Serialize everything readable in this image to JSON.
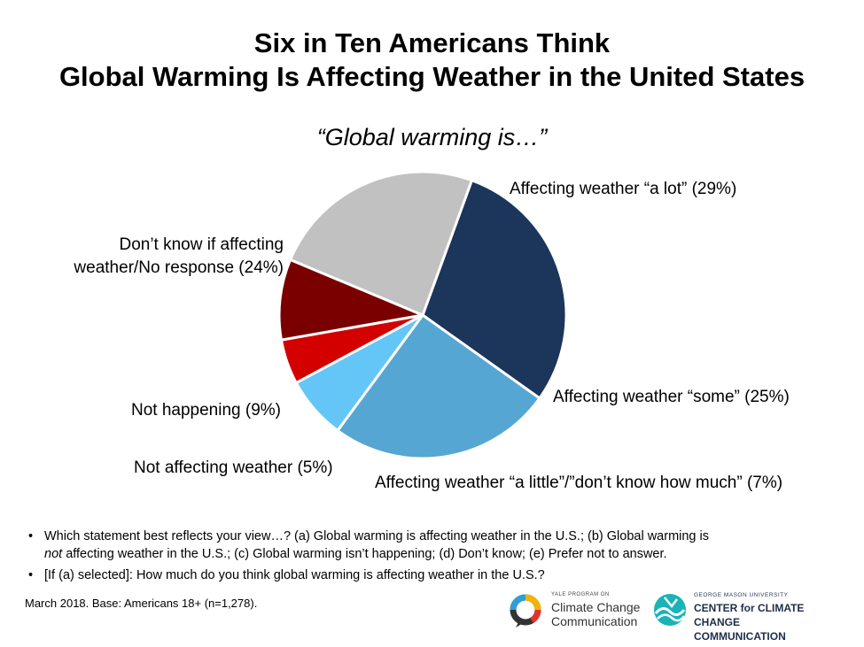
{
  "header": {
    "title_line1": "Six in Ten Americans Think",
    "title_line2": "Global Warming Is Affecting Weather in the United States",
    "subtitle": "“Global warming is…”"
  },
  "chart_data": {
    "type": "pie",
    "start_angle_deg": -70,
    "slices": [
      {
        "label": "Affecting weather “a lot” (29%)",
        "value": 29,
        "color": "#1b355b"
      },
      {
        "label": "Affecting weather “some” (25%)",
        "value": 25,
        "color": "#56a6d3"
      },
      {
        "label": "Affecting weather “a little”/”don’t know how much” (7%)",
        "value": 7,
        "color": "#64c6f7"
      },
      {
        "label": "Not affecting weather (5%)",
        "value": 5,
        "color": "#d40000"
      },
      {
        "label": "Not happening (9%)",
        "value": 9,
        "color": "#7a0000"
      },
      {
        "label": [
          "Don’t know if affecting",
          "weather/No response (24%)"
        ],
        "value": 24,
        "color": "#c1c1c1"
      }
    ]
  },
  "notes": {
    "note1_a": "Which statement best reflects your view…? (a) Global warming is affecting weather in the U.S.; (b) Global warming is",
    "note1_b_italic": "not",
    "note1_b_rest": " affecting weather in the U.S.; (c) Global warming isn’t happening; (d) Don’t know; (e) Prefer not to answer.",
    "note2": "[If (a) selected]: How much do you think global warming is affecting weather in the U.S.?",
    "bullet": "•",
    "source": "March 2018. Base: Americans 18+ (n=1,278)."
  },
  "logos": {
    "yale_small": "YALE PROGRAM ON",
    "yale_line1": "Climate Change",
    "yale_line2": "Communication",
    "gmu_small": "GEORGE MASON UNIVERSITY",
    "gmu_line1": "CENTER for CLIMATE CHANGE",
    "gmu_line2": "COMMUNICATION"
  }
}
